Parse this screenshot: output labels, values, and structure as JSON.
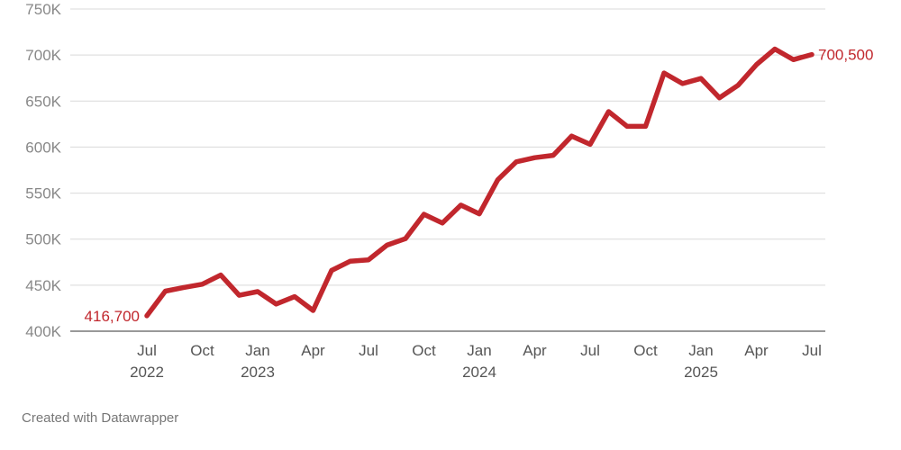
{
  "chart_data": {
    "type": "line",
    "x": [
      "2022-07",
      "2022-08",
      "2022-09",
      "2022-10",
      "2022-11",
      "2022-12",
      "2023-01",
      "2023-02",
      "2023-03",
      "2023-04",
      "2023-05",
      "2023-06",
      "2023-07",
      "2023-08",
      "2023-09",
      "2023-10",
      "2023-11",
      "2023-12",
      "2024-01",
      "2024-02",
      "2024-03",
      "2024-04",
      "2024-05",
      "2024-06",
      "2024-07",
      "2024-08",
      "2024-09",
      "2024-10",
      "2024-11",
      "2024-12",
      "2025-01",
      "2025-02",
      "2025-03",
      "2025-04",
      "2025-05",
      "2025-06",
      "2025-07"
    ],
    "series": [
      {
        "values": [
          416700,
          443500,
          447500,
          451000,
          461000,
          439000,
          443000,
          429500,
          437500,
          422500,
          466000,
          476000,
          477500,
          493500,
          500500,
          527000,
          517500,
          537000,
          527500,
          564500,
          584000,
          588500,
          591000,
          612000,
          603000,
          638500,
          622500,
          622500,
          680500,
          669000,
          674500,
          653500,
          667000,
          689500,
          706500,
          695000,
          700500
        ],
        "color": "#c1272d"
      }
    ],
    "ylim": [
      400000,
      750000
    ],
    "yticks": [
      {
        "value": 400000,
        "label": "400K"
      },
      {
        "value": 450000,
        "label": "450K"
      },
      {
        "value": 500000,
        "label": "500K"
      },
      {
        "value": 550000,
        "label": "550K"
      },
      {
        "value": 600000,
        "label": "600K"
      },
      {
        "value": 650000,
        "label": "650K"
      },
      {
        "value": 700000,
        "label": "700K"
      },
      {
        "value": 750000,
        "label": "750K"
      }
    ],
    "xticks": [
      {
        "index": 0,
        "label": "Jul",
        "sublabel": "2022"
      },
      {
        "index": 3,
        "label": "Oct",
        "sublabel": ""
      },
      {
        "index": 6,
        "label": "Jan",
        "sublabel": "2023"
      },
      {
        "index": 9,
        "label": "Apr",
        "sublabel": ""
      },
      {
        "index": 12,
        "label": "Jul",
        "sublabel": ""
      },
      {
        "index": 15,
        "label": "Oct",
        "sublabel": ""
      },
      {
        "index": 18,
        "label": "Jan",
        "sublabel": "2024"
      },
      {
        "index": 21,
        "label": "Apr",
        "sublabel": ""
      },
      {
        "index": 24,
        "label": "Jul",
        "sublabel": ""
      },
      {
        "index": 27,
        "label": "Oct",
        "sublabel": ""
      },
      {
        "index": 30,
        "label": "Jan",
        "sublabel": "2025"
      },
      {
        "index": 33,
        "label": "Apr",
        "sublabel": ""
      },
      {
        "index": 36,
        "label": "Jul",
        "sublabel": ""
      }
    ],
    "annotations": {
      "start_label": "416,700",
      "end_label": "700,500"
    },
    "grid": true
  },
  "footer": {
    "credit": "Created with Datawrapper"
  }
}
